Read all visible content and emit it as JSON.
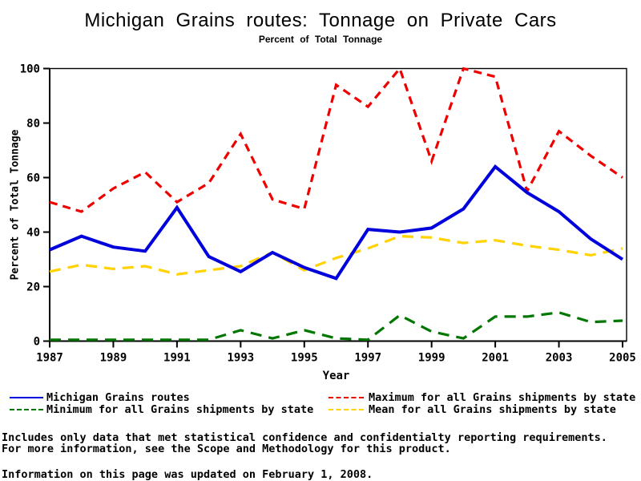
{
  "chart_data": {
    "type": "line",
    "title": "Michigan Grains routes: Tonnage on Private Cars",
    "subtitle": "Percent of Total Tonnage",
    "xlabel": "Year",
    "ylabel": "Percent of Total Tonnage",
    "xlim": [
      1987,
      2005
    ],
    "ylim": [
      0,
      100
    ],
    "xticks": [
      1987,
      1989,
      1991,
      1993,
      1995,
      1997,
      1999,
      2001,
      2003,
      2005
    ],
    "yticks": [
      0,
      20,
      40,
      60,
      80,
      100
    ],
    "grid": false,
    "legend_position": "bottom",
    "x": [
      1987,
      1988,
      1989,
      1990,
      1991,
      1992,
      1993,
      1994,
      1995,
      1996,
      1997,
      1998,
      1999,
      2000,
      2001,
      2002,
      2003,
      2004,
      2005
    ],
    "series": [
      {
        "name": "Michigan Grains routes",
        "color": "#0000dd",
        "line_style": "solid",
        "values": [
          33.5,
          38.5,
          34.5,
          33,
          49,
          31,
          25.5,
          32.5,
          27,
          23,
          41,
          40,
          41.5,
          48.5,
          64,
          54.5,
          47.5,
          37.5,
          30
        ]
      },
      {
        "name": "Maximum for all Grains shipments by state",
        "color": "#ee0000",
        "line_style": "dash",
        "values": [
          51,
          47.5,
          56,
          62,
          51,
          58,
          76,
          52,
          48.5,
          94,
          86,
          100,
          66,
          100,
          97,
          55,
          77,
          68,
          60
        ]
      },
      {
        "name": "Minimum for all Grains shipments by state",
        "color": "#007700",
        "line_style": "dash",
        "values": [
          0.5,
          0.5,
          0.5,
          0.5,
          0.5,
          0.5,
          4,
          1,
          4,
          1,
          0.5,
          9.5,
          3.5,
          1,
          9,
          9,
          10.5,
          7,
          7.5
        ]
      },
      {
        "name": "Mean for all Grains shipments by state",
        "color": "#ffd200",
        "line_style": "dash",
        "values": [
          25.5,
          28,
          26.5,
          27.5,
          24.5,
          26,
          27.5,
          32.5,
          26,
          30.5,
          34,
          38.5,
          38,
          36,
          37,
          35,
          33.5,
          31.5,
          34
        ]
      }
    ]
  },
  "footnotes": [
    "Includes only data that met statistical confidence and confidentialty reporting requirements.",
    "For more information, see the Scope and Methodology for this product."
  ],
  "update_note": "Information on this page was updated on February 1, 2008."
}
